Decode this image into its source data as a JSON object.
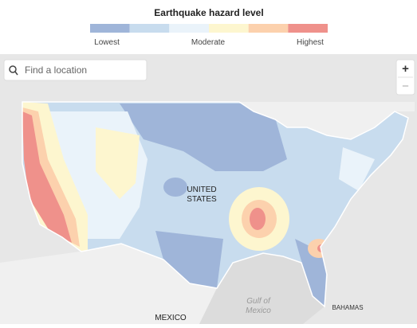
{
  "header": {
    "title": "Earthquake hazard level"
  },
  "legend": {
    "colors": [
      "#9fb5d9",
      "#c8dcee",
      "#eaf3fa",
      "#fdf6cf",
      "#fcd1ad",
      "#ef918b"
    ],
    "labels": [
      "Lowest",
      "Moderate",
      "Highest"
    ]
  },
  "search": {
    "placeholder": "Find a location"
  },
  "zoom": {
    "in": "+",
    "out": "−"
  },
  "map_labels": {
    "country": [
      "UNITED",
      "STATES"
    ],
    "gulf": [
      "Gulf of",
      "Mexico"
    ],
    "mexico": "MEXICO",
    "bahamas": "BAHAMAS"
  }
}
